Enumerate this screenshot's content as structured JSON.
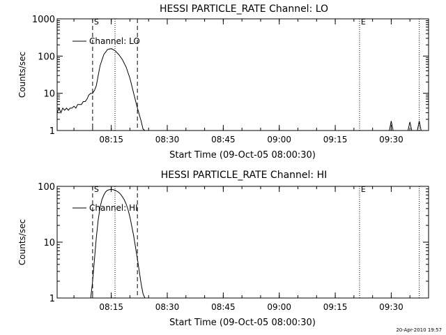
{
  "footer": "20-Apr-2010 19:57",
  "chart_data": [
    {
      "type": "line",
      "title": "HESSI PARTICLE_RATE Channel: LO",
      "xlabel": "Start Time (09-Oct-05 08:00:30)",
      "ylabel": "Counts/sec",
      "yscale": "log",
      "ylim": [
        1,
        1000
      ],
      "xlim": [
        "08:00:30",
        "09:40:00"
      ],
      "x_ticks": [
        "08:15",
        "08:30",
        "08:45",
        "09:00",
        "09:15",
        "09:30"
      ],
      "y_ticks": [
        "1",
        "10",
        "100",
        "1000"
      ],
      "legend": {
        "label": "Channel: LO",
        "placement": "top-left"
      },
      "markers": [
        {
          "label": "S",
          "time": "08:10:00",
          "style": "dashed"
        },
        {
          "label": "",
          "time": "08:16:00",
          "style": "dotted"
        },
        {
          "label": "",
          "time": "08:22:00",
          "style": "dashed"
        },
        {
          "label": "E",
          "time": "09:21:30",
          "style": "dotted"
        },
        {
          "label": "",
          "time": "09:37:30",
          "style": "dotted"
        }
      ],
      "series": [
        {
          "x": [
            "08:00:30",
            "08:01:00",
            "08:01:30",
            "08:02:00",
            "08:02:30",
            "08:03:00",
            "08:03:30",
            "08:04:00",
            "08:04:30",
            "08:05:00",
            "08:05:30",
            "08:06:00",
            "08:06:30",
            "08:07:00",
            "08:07:30",
            "08:08:00",
            "08:08:30",
            "08:09:00",
            "08:09:30",
            "08:10:00",
            "08:10:30",
            "08:11:00",
            "08:11:30",
            "08:12:00",
            "08:13:00",
            "08:14:00",
            "08:15:00",
            "08:16:00",
            "08:17:00",
            "08:18:00",
            "08:19:00",
            "08:20:00",
            "08:21:00",
            "08:22:00",
            "08:23:00",
            "08:23:30",
            "08:24:00",
            "09:29:30",
            "09:30:00",
            "09:30:30",
            "09:34:30",
            "09:35:00",
            "09:35:30",
            "09:37:00",
            "09:37:30",
            "09:38:00"
          ],
          "y": [
            3,
            4,
            3,
            4,
            3.5,
            4,
            3.5,
            4,
            4,
            4.5,
            4,
            5,
            5,
            5,
            6,
            6,
            7,
            9,
            10,
            10,
            12,
            16,
            30,
            55,
            110,
            150,
            158,
            140,
            110,
            80,
            50,
            25,
            10,
            4,
            1.8,
            1.1,
            1,
            1,
            1.8,
            1,
            1,
            1.7,
            1,
            1,
            1.8,
            1
          ]
        }
      ]
    },
    {
      "type": "line",
      "title": "HESSI PARTICLE_RATE Channel: HI",
      "xlabel": "Start Time (09-Oct-05 08:00:30)",
      "ylabel": "Counts/sec",
      "yscale": "log",
      "ylim": [
        1,
        100
      ],
      "xlim": [
        "08:00:30",
        "09:40:00"
      ],
      "x_ticks": [
        "08:15",
        "08:30",
        "08:45",
        "09:00",
        "09:15",
        "09:30"
      ],
      "y_ticks": [
        "1",
        "10",
        "100"
      ],
      "legend": {
        "label": "Channel: HI",
        "placement": "top-left"
      },
      "markers": [
        {
          "label": "S",
          "time": "08:10:00",
          "style": "dashed"
        },
        {
          "label": "",
          "time": "08:16:00",
          "style": "dotted"
        },
        {
          "label": "",
          "time": "08:22:00",
          "style": "dashed"
        },
        {
          "label": "E",
          "time": "09:21:30",
          "style": "dotted"
        },
        {
          "label": "",
          "time": "09:37:30",
          "style": "dotted"
        }
      ],
      "series": [
        {
          "x": [
            "08:09:30",
            "08:10:00",
            "08:10:30",
            "08:11:00",
            "08:11:30",
            "08:12:00",
            "08:12:30",
            "08:13:00",
            "08:13:30",
            "08:14:00",
            "08:14:30",
            "08:15:00",
            "08:15:30",
            "08:16:00",
            "08:16:30",
            "08:17:00",
            "08:17:30",
            "08:18:00",
            "08:18:30",
            "08:19:00",
            "08:19:30",
            "08:20:00",
            "08:21:00",
            "08:22:00",
            "08:23:00",
            "08:23:30",
            "08:24:00"
          ],
          "y": [
            1,
            2,
            5,
            12,
            25,
            42,
            58,
            70,
            80,
            85,
            87,
            88,
            87,
            85,
            82,
            78,
            72,
            65,
            57,
            48,
            38,
            28,
            13,
            5,
            1.8,
            1.2,
            1
          ]
        }
      ]
    }
  ]
}
